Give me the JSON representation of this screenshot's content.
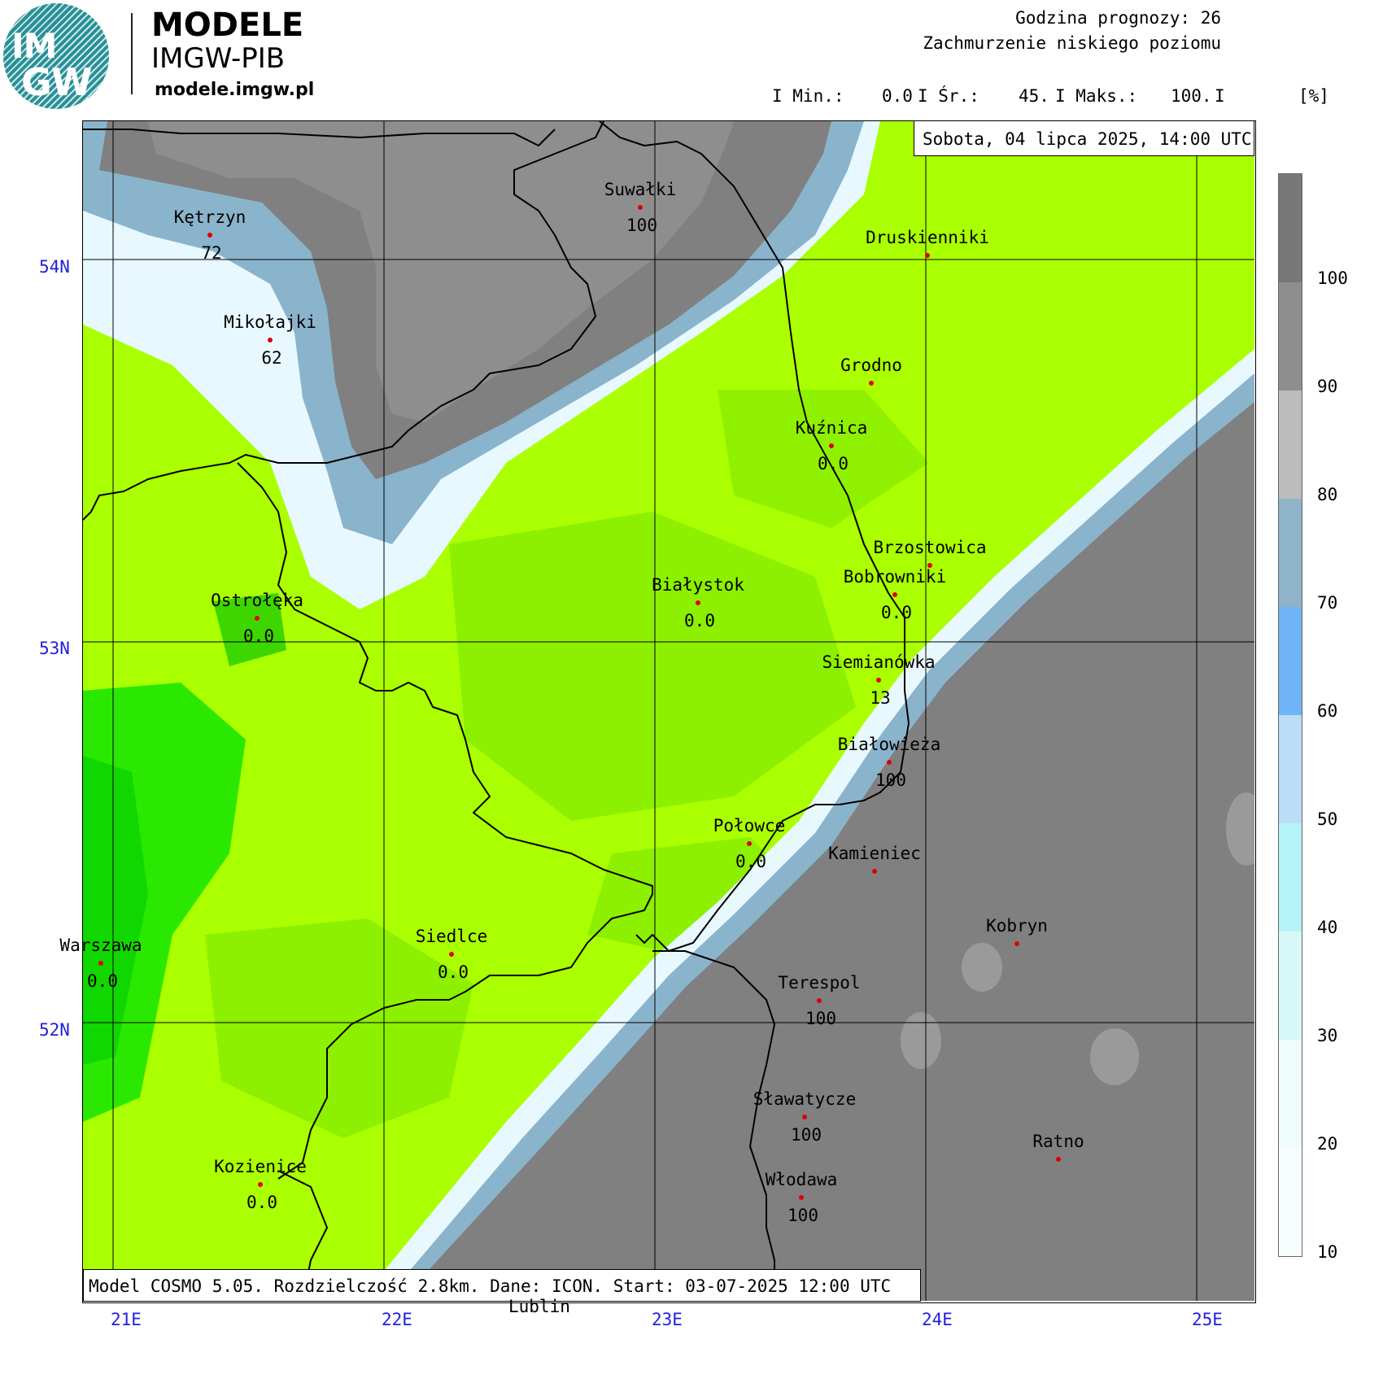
{
  "logo": {
    "im": "IM",
    "gw": "GW",
    "title": "MODELE",
    "subtitle": "IMGW-PIB",
    "url": "modele.imgw.pl"
  },
  "header": {
    "forecast_hour": "Godzina prognozy: 26",
    "variable": "Zachmurzenie niskiego poziomu",
    "min_label": "I Min.:",
    "min_value": "0.0",
    "mean_label": "I Śr.:",
    "mean_value": "45.",
    "max_label": "I Maks.:",
    "max_value": "100.",
    "end_bar": "I",
    "unit": "[%]"
  },
  "date_box": "Sobota, 04 lipca 2025, 14:00 UTC",
  "model_info": "Model COSMO 5.05. Rozdzielczość 2.8km. Dane: ICON. Start: 03-07-2025 12:00 UTC",
  "lat_labels": [
    "54N",
    "53N",
    "52N"
  ],
  "lon_labels": [
    "21E",
    "22E",
    "23E",
    "24E",
    "25E"
  ],
  "outside_label": "Lublin",
  "cities": [
    {
      "name": "Kętrzyn",
      "value": "72"
    },
    {
      "name": "Mikołajki",
      "value": "62"
    },
    {
      "name": "Suwałki",
      "value": "100"
    },
    {
      "name": "Druskienniki",
      "value": ""
    },
    {
      "name": "Grodno",
      "value": ""
    },
    {
      "name": "Kuźnica",
      "value": "0.0"
    },
    {
      "name": "Brzostowica",
      "value": ""
    },
    {
      "name": "Bobrowniki",
      "value": "0.0"
    },
    {
      "name": "Białystok",
      "value": "0.0"
    },
    {
      "name": "Ostrołęka",
      "value": "0.0"
    },
    {
      "name": "Siemianówka",
      "value": "13"
    },
    {
      "name": "Białowieża",
      "value": "100"
    },
    {
      "name": "Połowce",
      "value": "0.0"
    },
    {
      "name": "Kamieniec",
      "value": ""
    },
    {
      "name": "Kobryn",
      "value": ""
    },
    {
      "name": "Warszawa",
      "value": "0.0"
    },
    {
      "name": "Siedlce",
      "value": "0.0"
    },
    {
      "name": "Terespol",
      "value": "100"
    },
    {
      "name": "Sławatycze",
      "value": "100"
    },
    {
      "name": "Ratno",
      "value": ""
    },
    {
      "name": "Kozienice",
      "value": "0.0"
    },
    {
      "name": "Włodawa",
      "value": "100"
    }
  ],
  "colorbar": {
    "labels": [
      "100",
      "90",
      "80",
      "70",
      "60",
      "50",
      "40",
      "30",
      "20",
      "10"
    ],
    "colors": [
      "#787878",
      "#8e8e8e",
      "#bcbcbc",
      "#8fb4c8",
      "#6fb4f6",
      "#bcdcf8",
      "#b4f4f8",
      "#d8f8f8",
      "#eefcfc",
      "#f8fefe"
    ]
  },
  "field_colors": {
    "clear": "#aaff00",
    "clear_alt": "#88ee00",
    "clear_dark": "#00e000",
    "overcast": "#808080",
    "overcast_dark": "#767676",
    "edge_light": "#e8f8ff",
    "edge_blue": "#8ab4cc"
  }
}
